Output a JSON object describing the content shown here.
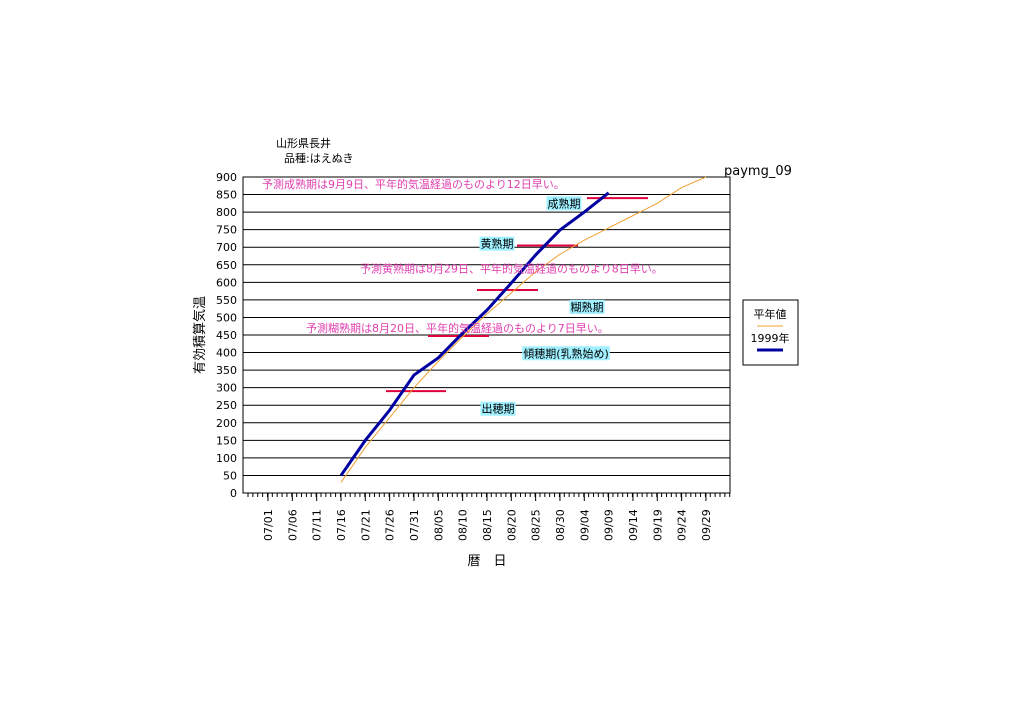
{
  "chart_data": {
    "type": "line",
    "title": "山形県長井",
    "subtitle": "品種:はえぬき",
    "code": "paymg_09",
    "y_label": "有効積算気温",
    "x_label": "暦　日",
    "categories": [
      "07/01",
      "07/06",
      "07/11",
      "07/16",
      "07/21",
      "07/26",
      "07/31",
      "08/05",
      "08/10",
      "08/15",
      "08/20",
      "08/25",
      "08/30",
      "09/04",
      "09/09",
      "09/14",
      "09/19",
      "09/24",
      "09/29"
    ],
    "ylim": [
      0,
      900
    ],
    "yticks": [
      0,
      50,
      100,
      150,
      200,
      250,
      300,
      350,
      400,
      450,
      500,
      550,
      600,
      650,
      700,
      750,
      800,
      850,
      900
    ],
    "grid": true,
    "series": [
      {
        "name": "平年値",
        "color": "#f0a030",
        "values": [
          null,
          null,
          null,
          30,
          130,
          215,
          300,
          375,
          445,
          510,
          570,
          630,
          680,
          720,
          755,
          790,
          825,
          870,
          900
        ]
      },
      {
        "name": "1999年",
        "color": "#0000a0",
        "values": [
          null,
          null,
          null,
          50,
          150,
          236,
          336,
          385,
          455,
          521,
          598,
          678,
          749,
          800,
          855,
          null,
          null,
          null,
          null
        ]
      }
    ],
    "stage_lines": {
      "color": "#e0003c",
      "values": [
        290,
        447,
        578,
        705,
        840
      ]
    },
    "stage_labels": [
      {
        "text": "出穂期",
        "value": 240
      },
      {
        "text": "傾穂期(乳熟始め)",
        "value": 398
      },
      {
        "text": "糊熟期",
        "value": 530
      },
      {
        "text": "黄熟期",
        "value": 710
      },
      {
        "text": "成熟期",
        "value": 825
      }
    ],
    "annotations": [
      {
        "text": "予測成熟期は9月9日、平年的気温経過のものより12日早い。",
        "value": 880
      },
      {
        "text": "予測黄熟期は8月29日、平年的気温経過のものより8日早い。",
        "value": 640
      },
      {
        "text": "予測糊熟期は8月20日、平年的気温経過のものより7日早い。",
        "value": 470
      }
    ]
  }
}
